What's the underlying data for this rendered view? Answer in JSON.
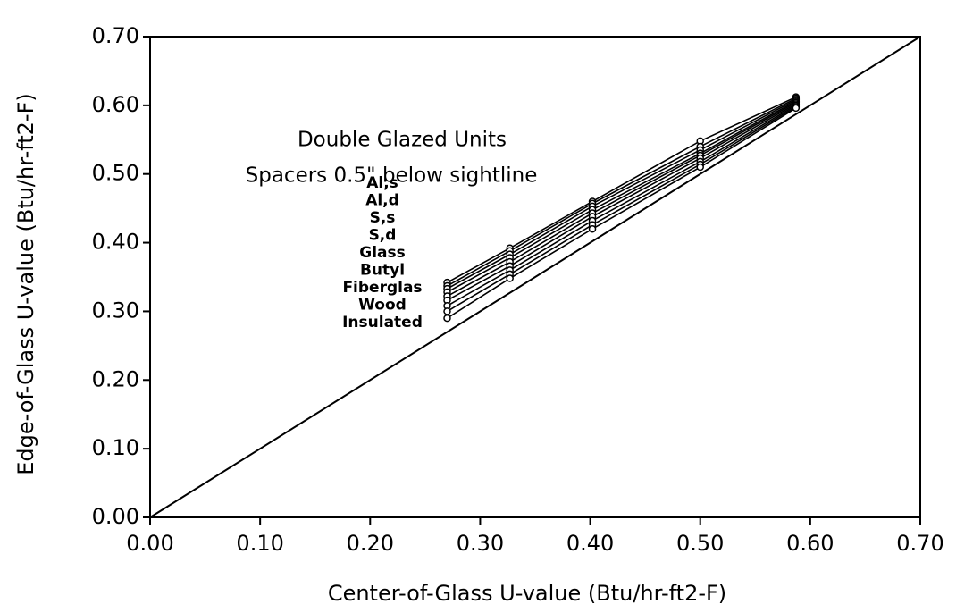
{
  "chart_data": {
    "type": "line",
    "annotations": [
      "Double Glazed Units",
      "Spacers 0.5\" below sightline"
    ],
    "x_label": "Center-of-Glass U-value (Btu/hr-ft2-F)",
    "y_label": "Edge-of-Glass U-value  (Btu/hr-ft2-F)",
    "x": [
      0.27,
      0.327,
      0.402,
      0.5,
      0.587
    ],
    "series": [
      {
        "name": "Al,s",
        "color": "#000000",
        "values": [
          0.342,
          0.392,
          0.46,
          0.548,
          0.612
        ]
      },
      {
        "name": "Al,d",
        "color": "#000000",
        "values": [
          0.337,
          0.388,
          0.457,
          0.54,
          0.61
        ]
      },
      {
        "name": "S,s",
        "color": "#000000",
        "values": [
          0.333,
          0.383,
          0.453,
          0.535,
          0.608
        ]
      },
      {
        "name": "S,d",
        "color": "#000000",
        "values": [
          0.328,
          0.378,
          0.448,
          0.53,
          0.606
        ]
      },
      {
        "name": "Glass",
        "color": "#000000",
        "values": [
          0.322,
          0.372,
          0.443,
          0.527,
          0.604
        ]
      },
      {
        "name": "Butyl",
        "color": "#000000",
        "values": [
          0.316,
          0.366,
          0.438,
          0.523,
          0.602
        ]
      },
      {
        "name": "Fiberglas",
        "color": "#000000",
        "values": [
          0.308,
          0.36,
          0.432,
          0.518,
          0.6
        ]
      },
      {
        "name": "Wood",
        "color": "#000000",
        "values": [
          0.3,
          0.354,
          0.426,
          0.514,
          0.598
        ]
      },
      {
        "name": "Insulated",
        "color": "#000000",
        "values": [
          0.29,
          0.348,
          0.42,
          0.51,
          0.596
        ]
      }
    ],
    "xlim": [
      0,
      0.7
    ],
    "ylim": [
      0,
      0.7
    ],
    "xticks": [
      {
        "value": 0,
        "label": "0.00"
      },
      {
        "value": 0.1,
        "label": "0.10"
      },
      {
        "value": 0.2,
        "label": "0.20"
      },
      {
        "value": 0.3,
        "label": "0.30"
      },
      {
        "value": 0.4,
        "label": "0.40"
      },
      {
        "value": 0.5,
        "label": "0.50"
      },
      {
        "value": 0.6,
        "label": "0.60"
      },
      {
        "value": 0.7,
        "label": "0.70"
      }
    ],
    "yticks": [
      {
        "value": 0,
        "label": "0.00"
      },
      {
        "value": 0.1,
        "label": "0.10"
      },
      {
        "value": 0.2,
        "label": "0.20"
      },
      {
        "value": 0.3,
        "label": "0.30"
      },
      {
        "value": 0.4,
        "label": "0.40"
      },
      {
        "value": 0.5,
        "label": "0.50"
      },
      {
        "value": 0.6,
        "label": "0.60"
      },
      {
        "value": 0.7,
        "label": "0.70"
      }
    ],
    "grid": false
  }
}
